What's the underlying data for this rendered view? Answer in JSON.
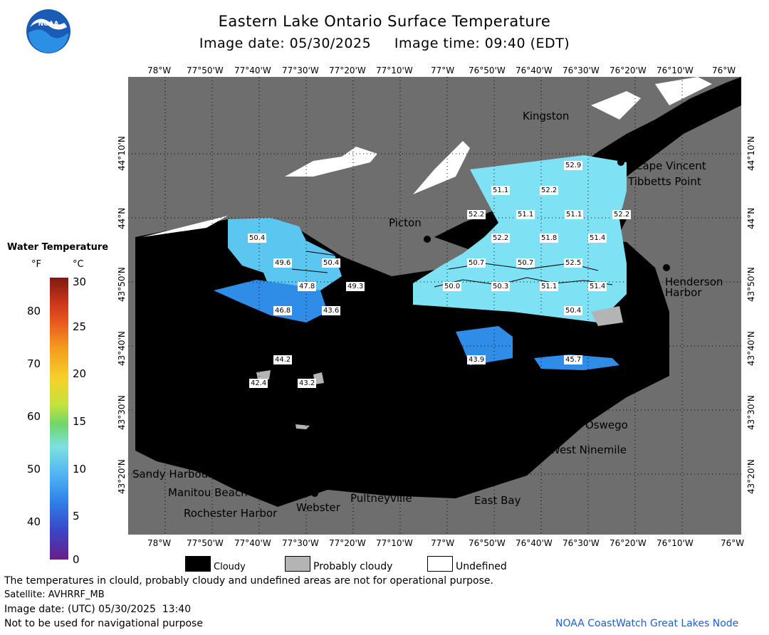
{
  "header": {
    "title": "Eastern Lake Ontario Surface Temperature",
    "subtitle": "Image date: 05/30/2025     Image time: 09:40 (EDT)"
  },
  "logo": {
    "text": "NOAA"
  },
  "axes": {
    "lon_labels": [
      "78°W",
      "77°50'W",
      "77°40'W",
      "77°30'W",
      "77°20'W",
      "77°10'W",
      "77°W",
      "76°50'W",
      "76°40'W",
      "76°30'W",
      "76°20'W",
      "76°10'W",
      "76°W"
    ],
    "lat_labels": [
      "44°10'N",
      "44°N",
      "43°50'N",
      "43°40'N",
      "43°30'N",
      "43°20'N"
    ]
  },
  "places": {
    "kingston": "Kingston",
    "cape_vincent": "Cape Vincent",
    "tibbetts_point": "Tibbetts Point",
    "picton": "Picton",
    "henderson_harbor_1": "Henderson",
    "henderson_harbor_2": "Harbor",
    "oswego": "Oswego",
    "west_ninemile": "West Ninemile",
    "sandy_harbour": "Sandy Harbour",
    "manitou_beach": "Manitou Beach",
    "rochester_harbor": "Rochester Harbor",
    "webster": "Webster",
    "pultneyville": "Pultneyville",
    "east_bay": "East Bay"
  },
  "temperature_labels": [
    "52.9",
    "51.1",
    "52.2",
    "52.2",
    "51.1",
    "51.1",
    "52.2",
    "52.2",
    "51.8",
    "51.4",
    "50.4",
    "49.6",
    "50.4",
    "50.7",
    "50.7",
    "52.5",
    "47.8",
    "49.3",
    "50.0",
    "50.3",
    "51.1",
    "51.4",
    "46.8",
    "43.6",
    "50.4",
    "44.2",
    "43.9",
    "45.7",
    "42.4",
    "43.2"
  ],
  "legend": {
    "title": "Water Temperature",
    "unit_f": "°F",
    "unit_c": "°C",
    "f_ticks": [
      "80",
      "70",
      "60",
      "50",
      "40"
    ],
    "c_ticks": [
      "30",
      "25",
      "20",
      "15",
      "10",
      "5",
      "0"
    ],
    "colors": [
      "#e8531d",
      "#f39c1e",
      "#f5d22a",
      "#c4e23c",
      "#6fd66a",
      "#7ee0e0",
      "#4fb4f2",
      "#2f7de8",
      "#3a45c4",
      "#5a2c9e",
      "#6a1d8a"
    ]
  },
  "key": {
    "cloudy": "Cloudy",
    "probably_cloudy": "Probably cloudy",
    "undefined": "Undefined"
  },
  "footer": {
    "note": "The temperatures in clould, probably cloudy and undefined areas are not for operational purpose.",
    "satellite": "Satellite: AVHRRF_MB",
    "utc_date": "Image date: (UTC) 05/30/2025  13:40",
    "nav_warning": "Not to be used for navigational purpose",
    "credit": "NOAA CoastWatch Great Lakes Node"
  }
}
